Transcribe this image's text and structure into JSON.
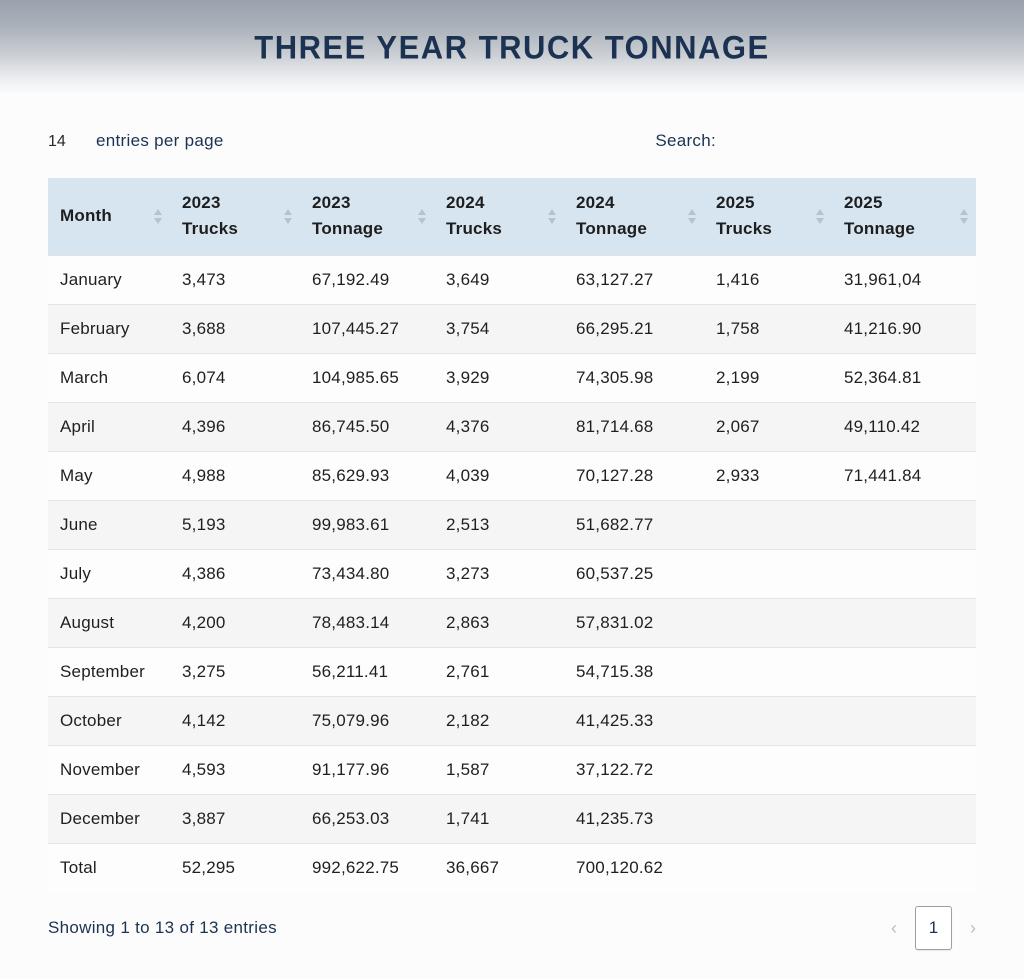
{
  "header": {
    "title": "THREE YEAR TRUCK TONNAGE"
  },
  "controls": {
    "entries_value": "14",
    "entries_label": "entries per page",
    "search_label": "Search:",
    "search_value": ""
  },
  "table": {
    "columns": [
      {
        "line1": "Month",
        "line2": ""
      },
      {
        "line1": "2023",
        "line2": "Trucks"
      },
      {
        "line1": "2023",
        "line2": "Tonnage"
      },
      {
        "line1": "2024",
        "line2": "Trucks"
      },
      {
        "line1": "2024",
        "line2": "Tonnage"
      },
      {
        "line1": "2025",
        "line2": "Trucks"
      },
      {
        "line1": "2025",
        "line2": "Tonnage"
      }
    ],
    "rows": [
      {
        "month": "January",
        "values": [
          "3,473",
          "67,192.49",
          "3,649",
          "63,127.27",
          "1,416",
          "31,961,04"
        ]
      },
      {
        "month": "February",
        "values": [
          "3,688",
          "107,445.27",
          "3,754",
          "66,295.21",
          "1,758",
          "41,216.90"
        ]
      },
      {
        "month": "March",
        "values": [
          "6,074",
          "104,985.65",
          "3,929",
          "74,305.98",
          "2,199",
          "52,364.81"
        ]
      },
      {
        "month": "April",
        "values": [
          "4,396",
          "86,745.50",
          "4,376",
          "81,714.68",
          "2,067",
          "49,110.42"
        ]
      },
      {
        "month": "May",
        "values": [
          "4,988",
          "85,629.93",
          "4,039",
          "70,127.28",
          "2,933",
          "71,441.84"
        ]
      },
      {
        "month": "June",
        "values": [
          "5,193",
          "99,983.61",
          "2,513",
          "51,682.77",
          "",
          ""
        ]
      },
      {
        "month": "July",
        "values": [
          "4,386",
          "73,434.80",
          "3,273",
          "60,537.25",
          "",
          ""
        ]
      },
      {
        "month": "August",
        "values": [
          "4,200",
          "78,483.14",
          "2,863",
          "57,831.02",
          "",
          ""
        ]
      },
      {
        "month": "September",
        "values": [
          "3,275",
          "56,211.41",
          "2,761",
          "54,715.38",
          "",
          ""
        ]
      },
      {
        "month": "October",
        "values": [
          "4,142",
          "75,079.96",
          "2,182",
          "41,425.33",
          "",
          ""
        ]
      },
      {
        "month": "November",
        "values": [
          "4,593",
          "91,177.96",
          "1,587",
          "37,122.72",
          "",
          ""
        ]
      },
      {
        "month": "December",
        "values": [
          "3,887",
          "66,253.03",
          "1,741",
          "41,235.73",
          "",
          ""
        ]
      },
      {
        "month": "Total",
        "values": [
          "52,295",
          "992,622.75",
          "36,667",
          "700,120.62",
          "",
          ""
        ]
      }
    ]
  },
  "footer": {
    "showing_text": "Showing 1 to 13 of 13 entries",
    "prev_icon": "‹",
    "current_page": "1",
    "next_icon": "›"
  },
  "colors": {
    "title_navy": "#1c3252",
    "table_header_blue": "#d7e5f0",
    "row_alt_gray": "#f5f5f6",
    "sort_icon_gray": "#b7c2cc",
    "masthead_gradient_top": "#99a2ac"
  }
}
